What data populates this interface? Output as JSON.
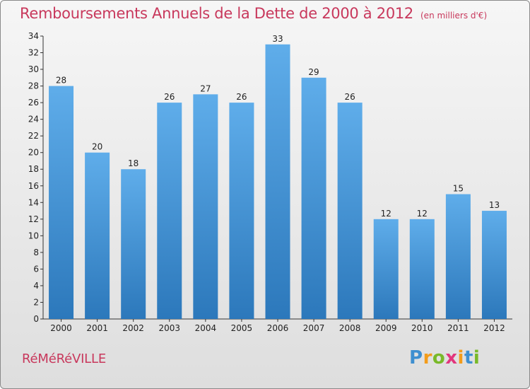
{
  "chart_data": {
    "type": "bar",
    "title": "Remboursements Annuels de la Dette de 2000 à 2012",
    "unit_note": "(en milliers d'€)",
    "categories": [
      "2000",
      "2001",
      "2002",
      "2003",
      "2004",
      "2005",
      "2006",
      "2007",
      "2008",
      "2009",
      "2010",
      "2011",
      "2012"
    ],
    "values": [
      28,
      20,
      18,
      26,
      27,
      26,
      33,
      29,
      26,
      12,
      12,
      15,
      13
    ],
    "ylim": [
      0,
      34
    ],
    "yticks": [
      0,
      2,
      4,
      6,
      8,
      10,
      12,
      14,
      16,
      18,
      20,
      22,
      24,
      26,
      28,
      30,
      32,
      34
    ],
    "xlabel": "",
    "ylabel": "",
    "grid": false,
    "bar_color": "#3d8fd4"
  },
  "commune": "RéMéRéVILLE",
  "logo": {
    "letters": [
      "P",
      "r",
      "o",
      "x",
      "i",
      "t",
      "i"
    ],
    "colors": [
      "#3e8fd0",
      "#f39c1a",
      "#79b929",
      "#e2367c",
      "#f39c1a",
      "#3e8fd0",
      "#79b929"
    ]
  }
}
